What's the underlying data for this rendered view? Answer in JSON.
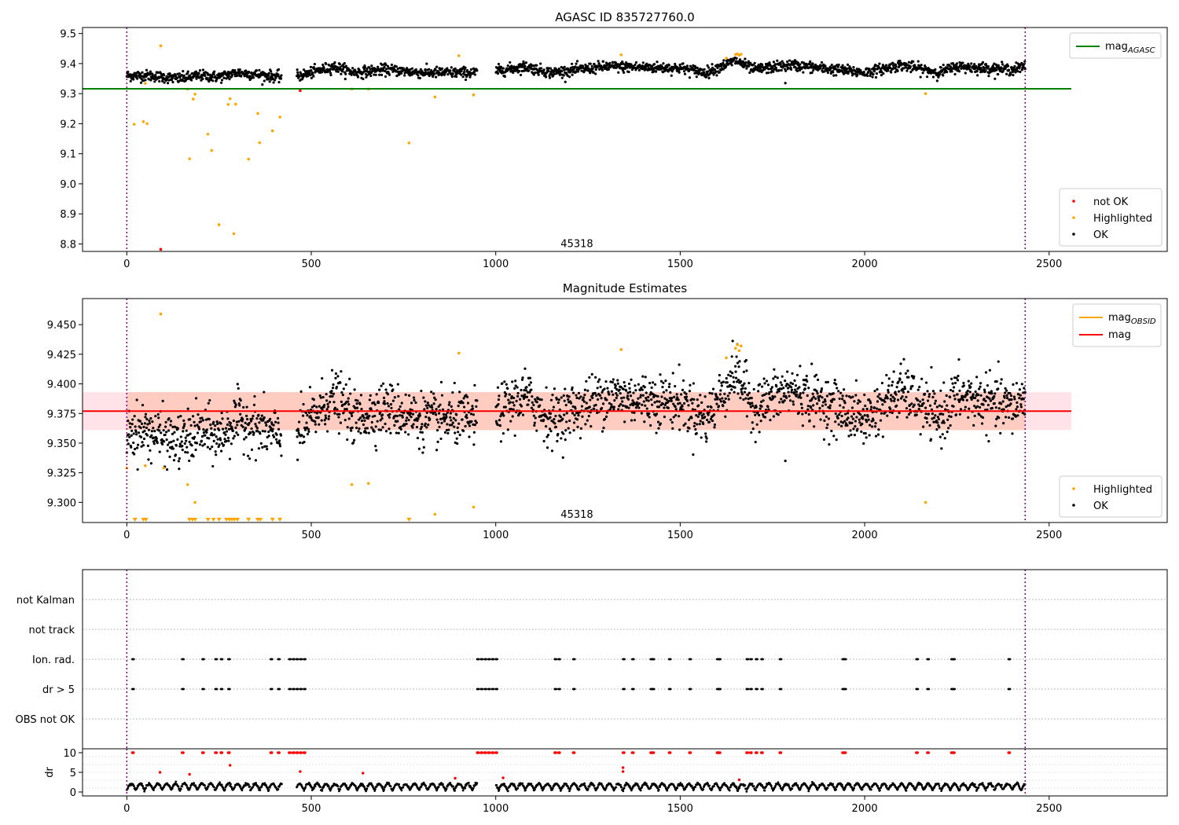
{
  "chart_data": [
    {
      "type": "scatter",
      "title": "AGASC ID 835727760.0",
      "xlim": [
        -120,
        2820
      ],
      "ylim": [
        8.775,
        9.52
      ],
      "xticks": [
        0,
        500,
        1000,
        1500,
        2000,
        2500
      ],
      "yticks": [
        8.8,
        8.9,
        9.0,
        9.1,
        9.2,
        9.3,
        9.4,
        9.5
      ],
      "ytick_decimals": 1,
      "vlines": [
        0,
        2435
      ],
      "annotation": {
        "text": "45318",
        "x": 1220,
        "y": 8.79
      },
      "hlines": [
        {
          "name": "mag_AGASC",
          "y": 9.316,
          "x": [
            -120,
            2560
          ],
          "color": "#008000"
        }
      ],
      "legend_top": [
        {
          "label": "mag",
          "sub": "AGASC",
          "color": "#008000"
        }
      ],
      "legend_bottom": [
        {
          "label": "not OK",
          "color": "#ff0000"
        },
        {
          "label": "Highlighted",
          "color": "#ffa500"
        },
        {
          "label": "OK",
          "color": "#000000"
        }
      ],
      "ok_trend": {
        "x": [
          0,
          60,
          140,
          200,
          250,
          300,
          420,
          470,
          560,
          620,
          700,
          800,
          950,
          1000,
          1080,
          1150,
          1300,
          1500,
          1570,
          1650,
          1700,
          1800,
          2000,
          2100,
          2200,
          2250,
          2400,
          2435
        ],
        "y": [
          9.36,
          9.36,
          9.35,
          9.36,
          9.355,
          9.37,
          9.355,
          9.36,
          9.39,
          9.37,
          9.38,
          9.37,
          9.37,
          9.375,
          9.39,
          9.37,
          9.39,
          9.385,
          9.37,
          9.41,
          9.38,
          9.395,
          9.37,
          9.395,
          9.37,
          9.39,
          9.38,
          9.39
        ]
      },
      "ok_gaps": [
        [
          420,
          460
        ],
        [
          950,
          1000
        ]
      ],
      "highlighted_points": [
        {
          "x": 20,
          "y": 9.198
        },
        {
          "x": 45,
          "y": 9.207
        },
        {
          "x": 50,
          "y": 9.334
        },
        {
          "x": 55,
          "y": 9.2
        },
        {
          "x": 92,
          "y": 9.459
        },
        {
          "x": 165,
          "y": 9.315
        },
        {
          "x": 170,
          "y": 9.083
        },
        {
          "x": 180,
          "y": 9.282
        },
        {
          "x": 185,
          "y": 9.298
        },
        {
          "x": 220,
          "y": 9.165
        },
        {
          "x": 230,
          "y": 9.111
        },
        {
          "x": 250,
          "y": 8.864
        },
        {
          "x": 275,
          "y": 9.264
        },
        {
          "x": 280,
          "y": 9.283
        },
        {
          "x": 290,
          "y": 8.834
        },
        {
          "x": 295,
          "y": 9.265
        },
        {
          "x": 330,
          "y": 9.082
        },
        {
          "x": 355,
          "y": 9.234
        },
        {
          "x": 360,
          "y": 9.137
        },
        {
          "x": 395,
          "y": 9.176
        },
        {
          "x": 415,
          "y": 9.222
        },
        {
          "x": 610,
          "y": 9.315
        },
        {
          "x": 655,
          "y": 9.315
        },
        {
          "x": 765,
          "y": 9.136
        },
        {
          "x": 835,
          "y": 9.289
        },
        {
          "x": 900,
          "y": 9.426
        },
        {
          "x": 940,
          "y": 9.296
        },
        {
          "x": 1340,
          "y": 9.429
        },
        {
          "x": 1625,
          "y": 9.418
        },
        {
          "x": 1650,
          "y": 9.43
        },
        {
          "x": 1655,
          "y": 9.432
        },
        {
          "x": 1660,
          "y": 9.428
        },
        {
          "x": 1665,
          "y": 9.431
        },
        {
          "x": 2165,
          "y": 9.3
        }
      ],
      "notok_points": [
        {
          "x": 92,
          "y": 8.782
        },
        {
          "x": 470,
          "y": 9.31
        }
      ],
      "ok_outliers": [
        {
          "x": 1785,
          "y": 9.335
        }
      ]
    },
    {
      "type": "scatter",
      "title": "Magnitude Estimates",
      "xlim": [
        -120,
        2820
      ],
      "ylim": [
        9.283,
        9.472
      ],
      "xticks": [
        0,
        500,
        1000,
        1500,
        2000,
        2500
      ],
      "yticks": [
        9.3,
        9.325,
        9.35,
        9.375,
        9.4,
        9.425,
        9.45
      ],
      "ytick_decimals": 3,
      "vlines": [
        0,
        2435
      ],
      "annotation": {
        "text": "45318",
        "x": 1220,
        "y": 9.287
      },
      "band": {
        "y0": 9.361,
        "y1": 9.393,
        "x": [
          -120,
          2560
        ]
      },
      "hlines": [
        {
          "name": "mag",
          "y": 9.377,
          "x": [
            -120,
            2560
          ],
          "color": "#ff0000"
        }
      ],
      "legend_top": [
        {
          "label": "mag",
          "sub": "OBSID",
          "color": "#ffa500"
        },
        {
          "label": "mag",
          "sub": "",
          "color": "#ff0000"
        }
      ],
      "legend_bottom": [
        {
          "label": "Highlighted",
          "color": "#ffa500"
        },
        {
          "label": "OK",
          "color": "#000000"
        }
      ],
      "ok_trend": {
        "x": [
          0,
          60,
          140,
          200,
          250,
          300,
          420,
          470,
          560,
          620,
          700,
          800,
          950,
          1000,
          1080,
          1150,
          1300,
          1500,
          1570,
          1650,
          1700,
          1800,
          2000,
          2100,
          2200,
          2250,
          2400,
          2435
        ],
        "y": [
          9.36,
          9.36,
          9.35,
          9.36,
          9.355,
          9.37,
          9.355,
          9.36,
          9.39,
          9.37,
          9.38,
          9.37,
          9.37,
          9.375,
          9.39,
          9.37,
          9.39,
          9.385,
          9.37,
          9.41,
          9.38,
          9.395,
          9.37,
          9.395,
          9.37,
          9.39,
          9.38,
          9.39
        ]
      },
      "ok_gaps": [
        [
          420,
          460
        ],
        [
          950,
          1000
        ]
      ],
      "highlighted_points": [
        {
          "x": 0,
          "y": 9.329
        },
        {
          "x": 50,
          "y": 9.331
        },
        {
          "x": 92,
          "y": 9.459
        },
        {
          "x": 165,
          "y": 9.315
        },
        {
          "x": 185,
          "y": 9.3
        },
        {
          "x": 100,
          "y": 9.329
        },
        {
          "x": 610,
          "y": 9.315
        },
        {
          "x": 655,
          "y": 9.316
        },
        {
          "x": 835,
          "y": 9.29
        },
        {
          "x": 900,
          "y": 9.426
        },
        {
          "x": 940,
          "y": 9.296
        },
        {
          "x": 1340,
          "y": 9.429
        },
        {
          "x": 1625,
          "y": 9.422
        },
        {
          "x": 1650,
          "y": 9.43
        },
        {
          "x": 1655,
          "y": 9.433
        },
        {
          "x": 1660,
          "y": 9.428
        },
        {
          "x": 1665,
          "y": 9.432
        },
        {
          "x": 2165,
          "y": 9.3
        }
      ],
      "clipped_low_markers": [
        22,
        45,
        52,
        170,
        178,
        185,
        220,
        235,
        250,
        270,
        278,
        285,
        292,
        300,
        330,
        355,
        362,
        395,
        415,
        765
      ],
      "ok_outliers": [
        {
          "x": 1785,
          "y": 9.335
        }
      ]
    },
    {
      "type": "scatter",
      "title": "",
      "xlim": [
        -120,
        2820
      ],
      "categories": [
        "not Kalman",
        "not track",
        "Ion. rad.",
        "dr > 5",
        "OBS not OK"
      ],
      "vlines": [
        0,
        2435
      ],
      "flag_clusters": [
        15,
        150,
        205,
        240,
        255,
        275,
        390,
        410,
        440,
        450,
        460,
        470,
        480,
        950,
        960,
        970,
        980,
        990,
        1000,
        1160,
        1170,
        1210,
        1345,
        1370,
        1420,
        1425,
        1470,
        1525,
        1600,
        1605,
        1680,
        1690,
        1705,
        1720,
        1770,
        1940,
        1945,
        2140,
        2170,
        2235,
        2240,
        2390
      ],
      "dr": {
        "ylim": [
          -1,
          11
        ],
        "yticks": [
          0,
          5,
          10
        ],
        "ylabel": "dr",
        "red_high_x": [
          15,
          150,
          205,
          240,
          255,
          275,
          390,
          410,
          440,
          450,
          460,
          470,
          480,
          950,
          960,
          970,
          980,
          990,
          1000,
          1160,
          1170,
          1210,
          1345,
          1370,
          1420,
          1425,
          1470,
          1525,
          1600,
          1605,
          1680,
          1690,
          1705,
          1720,
          1770,
          1940,
          1945,
          2140,
          2170,
          2235,
          2240,
          2390
        ],
        "red_mid_points": [
          {
            "x": 90,
            "y": 5.0
          },
          {
            "x": 170,
            "y": 4.5
          },
          {
            "x": 280,
            "y": 6.8
          },
          {
            "x": 470,
            "y": 5.2
          },
          {
            "x": 640,
            "y": 4.8
          },
          {
            "x": 1345,
            "y": 6.2
          },
          {
            "x": 1345,
            "y": 5.2
          },
          {
            "x": 890,
            "y": 3.5
          },
          {
            "x": 1020,
            "y": 3.6
          },
          {
            "x": 1660,
            "y": 3.1
          }
        ]
      }
    }
  ]
}
